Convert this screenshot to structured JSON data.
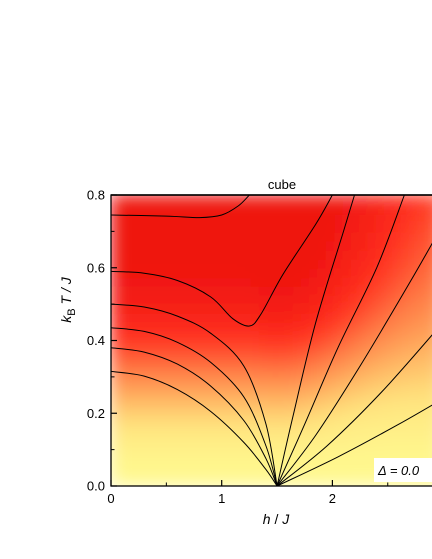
{
  "chart_data": {
    "type": "heatmap",
    "title": "cube",
    "xlabel": {
      "italic_pre": "h",
      "rest": " / ",
      "italic_post": "J"
    },
    "ylabel": {
      "k": "k",
      "sub": "B",
      "rest": " T / J"
    },
    "xlim": [
      0,
      3
    ],
    "ylim": [
      0.0,
      0.8
    ],
    "x_ticks": [
      0,
      1,
      2
    ],
    "x_tick_labels": [
      "0",
      "1",
      "2"
    ],
    "y_ticks": [
      0.0,
      0.2,
      0.4,
      0.6,
      0.8
    ],
    "y_tick_labels": [
      "0.0",
      "0.2",
      "0.4",
      "0.6",
      "0.8"
    ],
    "annotation": "Δ = 0.0",
    "critical_point_h": 1.5,
    "colormap": [
      "#fff98f",
      "#ffe27d",
      "#ffb060",
      "#ff7a45",
      "#ff3020",
      "#ef1510"
    ],
    "contour_color": "#000000",
    "contours": [
      {
        "name": "contour-1",
        "points": [
          [
            0,
            0.315
          ],
          [
            0.3,
            0.302
          ],
          [
            0.6,
            0.265
          ],
          [
            0.9,
            0.205
          ],
          [
            1.2,
            0.12
          ],
          [
            1.4,
            0.045
          ],
          [
            1.5,
            0.0
          ]
        ]
      },
      {
        "name": "contour-2",
        "points": [
          [
            0,
            0.38
          ],
          [
            0.3,
            0.368
          ],
          [
            0.6,
            0.335
          ],
          [
            0.9,
            0.275
          ],
          [
            1.2,
            0.18
          ],
          [
            1.4,
            0.075
          ],
          [
            1.5,
            0.0
          ]
        ]
      },
      {
        "name": "contour-3",
        "points": [
          [
            0,
            0.435
          ],
          [
            0.3,
            0.425
          ],
          [
            0.6,
            0.395
          ],
          [
            0.9,
            0.34
          ],
          [
            1.2,
            0.245
          ],
          [
            1.4,
            0.11
          ],
          [
            1.5,
            0.0
          ]
        ]
      },
      {
        "name": "contour-4",
        "points": [
          [
            0,
            0.5
          ],
          [
            0.3,
            0.492
          ],
          [
            0.6,
            0.467
          ],
          [
            0.9,
            0.42
          ],
          [
            1.2,
            0.33
          ],
          [
            1.4,
            0.17
          ],
          [
            1.5,
            0.0
          ]
        ]
      },
      {
        "name": "contour-5",
        "points": [
          [
            0,
            0.59
          ],
          [
            0.3,
            0.585
          ],
          [
            0.6,
            0.565
          ],
          [
            0.9,
            0.52
          ],
          [
            1.1,
            0.46
          ],
          [
            1.25,
            0.44
          ],
          [
            1.35,
            0.47
          ],
          [
            1.55,
            0.58
          ],
          [
            1.85,
            0.72
          ],
          [
            2.0,
            0.8
          ]
        ]
      },
      {
        "name": "contour-6",
        "points": [
          [
            0,
            0.745
          ],
          [
            0.5,
            0.742
          ],
          [
            0.8,
            0.738
          ],
          [
            1.0,
            0.745
          ],
          [
            1.15,
            0.77
          ],
          [
            1.25,
            0.8
          ]
        ]
      },
      {
        "name": "contour-7",
        "points": [
          [
            1.5,
            0.0
          ],
          [
            1.65,
            0.2
          ],
          [
            1.85,
            0.45
          ],
          [
            2.1,
            0.7
          ],
          [
            2.2,
            0.8
          ]
        ]
      },
      {
        "name": "contour-8",
        "points": [
          [
            1.5,
            0.0
          ],
          [
            1.75,
            0.17
          ],
          [
            2.05,
            0.38
          ],
          [
            2.4,
            0.6
          ],
          [
            2.65,
            0.8
          ]
        ]
      },
      {
        "name": "contour-9",
        "points": [
          [
            1.5,
            0.0
          ],
          [
            1.85,
            0.14
          ],
          [
            2.25,
            0.33
          ],
          [
            2.7,
            0.56
          ],
          [
            3.0,
            0.72
          ]
        ]
      },
      {
        "name": "contour-10",
        "points": [
          [
            1.5,
            0.0
          ],
          [
            1.95,
            0.11
          ],
          [
            2.45,
            0.26
          ],
          [
            3.0,
            0.45
          ]
        ]
      },
      {
        "name": "contour-11",
        "points": [
          [
            1.5,
            0.0
          ],
          [
            2.05,
            0.08
          ],
          [
            2.6,
            0.17
          ],
          [
            3.0,
            0.24
          ]
        ]
      }
    ]
  }
}
